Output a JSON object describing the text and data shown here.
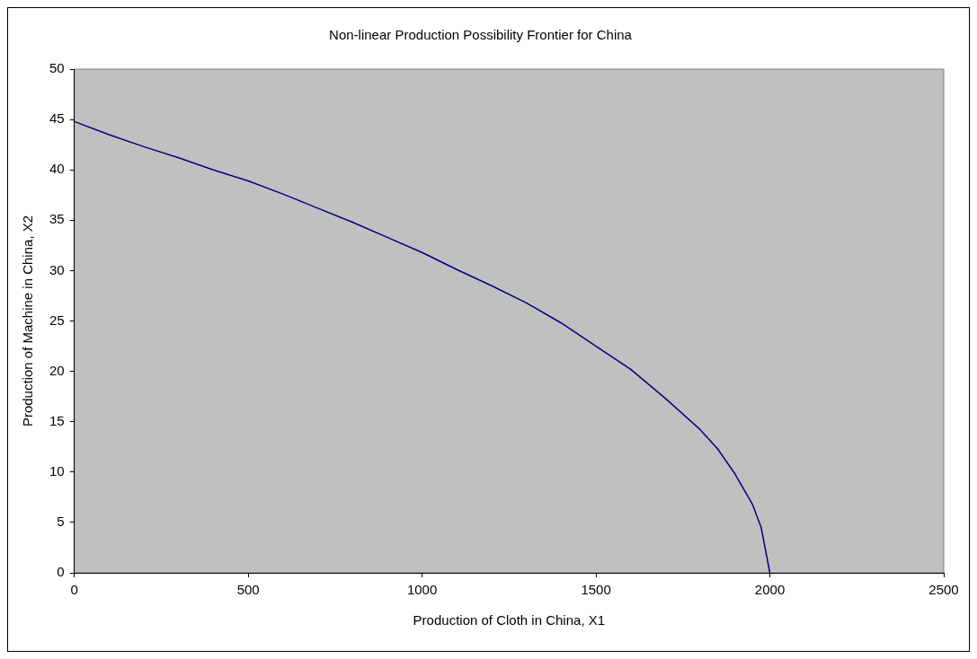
{
  "chart_data": {
    "type": "line",
    "title": "Non-linear Production Possibility Frontier for China",
    "xlabel": "Production of Cloth in China, X1",
    "ylabel": "Production of Machine in China, X2",
    "x": [
      0,
      100,
      200,
      300,
      400,
      500,
      600,
      700,
      800,
      900,
      1000,
      1100,
      1200,
      1300,
      1400,
      1500,
      1600,
      1700,
      1800,
      1850,
      1900,
      1950,
      1975,
      2000
    ],
    "series": [
      {
        "color": "#000080",
        "values": [
          44.8,
          43.5,
          42.3,
          41.2,
          40.0,
          38.9,
          37.6,
          36.2,
          34.8,
          33.3,
          31.8,
          30.1,
          28.5,
          26.8,
          24.8,
          22.5,
          20.2,
          17.3,
          14.2,
          12.3,
          9.8,
          6.8,
          4.5,
          0
        ]
      }
    ],
    "xlim": [
      0,
      2500
    ],
    "xticks": [
      0,
      500,
      1000,
      1500,
      2000,
      2500
    ],
    "ylim": [
      0,
      50
    ],
    "yticks": [
      0,
      5,
      10,
      15,
      20,
      25,
      30,
      35,
      40,
      45,
      50
    ],
    "grid": false,
    "legend": false,
    "marker": "none",
    "line_style": "solid"
  }
}
